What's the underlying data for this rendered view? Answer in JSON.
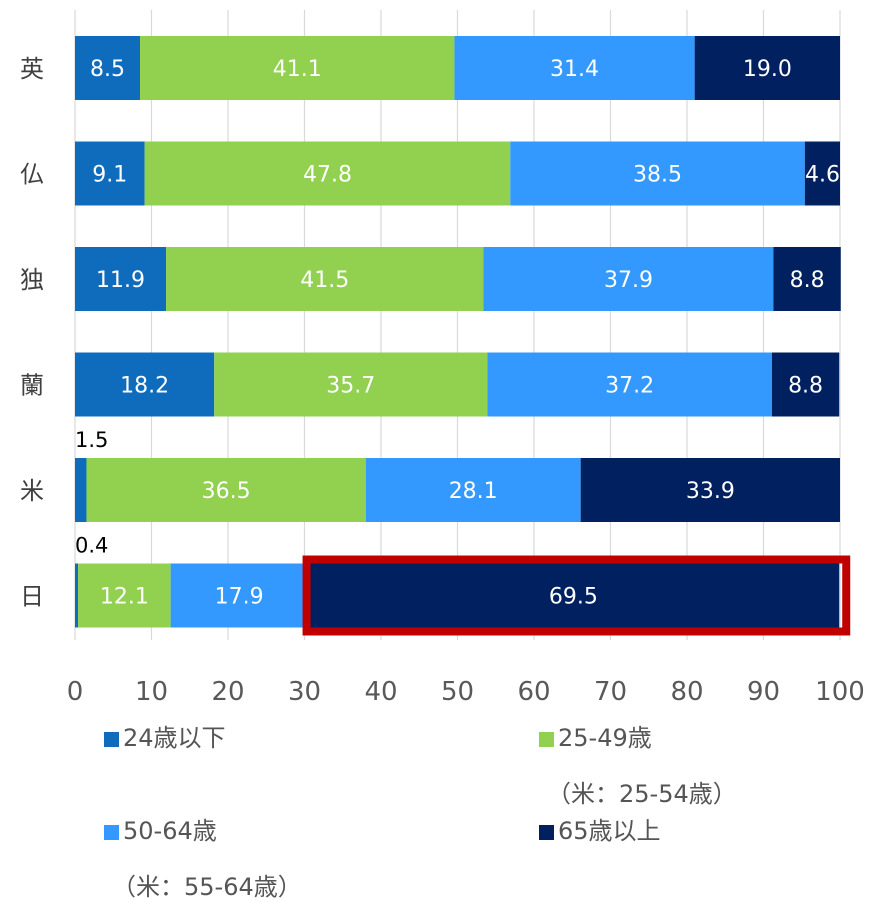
{
  "chart_data": {
    "type": "bar",
    "orientation": "horizontal",
    "stacked": true,
    "categories": [
      "英",
      "仏",
      "独",
      "蘭",
      "米",
      "日"
    ],
    "series": [
      {
        "name": "24歳以下",
        "color": "#0f6cbd",
        "values": [
          8.5,
          9.1,
          11.9,
          18.2,
          1.5,
          0.4
        ]
      },
      {
        "name": "25-49歳",
        "note": "（米：25-54歳）",
        "color": "#92d050",
        "values": [
          41.1,
          47.8,
          41.5,
          35.7,
          36.5,
          12.1
        ]
      },
      {
        "name": "50-64歳",
        "note": "（米：55-64歳）",
        "color": "#3399ff",
        "values": [
          31.4,
          38.5,
          37.9,
          37.2,
          28.1,
          17.9
        ]
      },
      {
        "name": "65歳以上",
        "color": "#002060",
        "values": [
          19.0,
          4.6,
          8.8,
          8.8,
          33.9,
          69.5
        ]
      }
    ],
    "xlim": [
      0,
      100
    ],
    "xticks": [
      0,
      10,
      20,
      30,
      40,
      50,
      60,
      70,
      80,
      90,
      100
    ],
    "grid": true,
    "highlight": {
      "category": "日",
      "series": "65歳以上",
      "color": "#c00000"
    },
    "legend_position": "bottom"
  }
}
